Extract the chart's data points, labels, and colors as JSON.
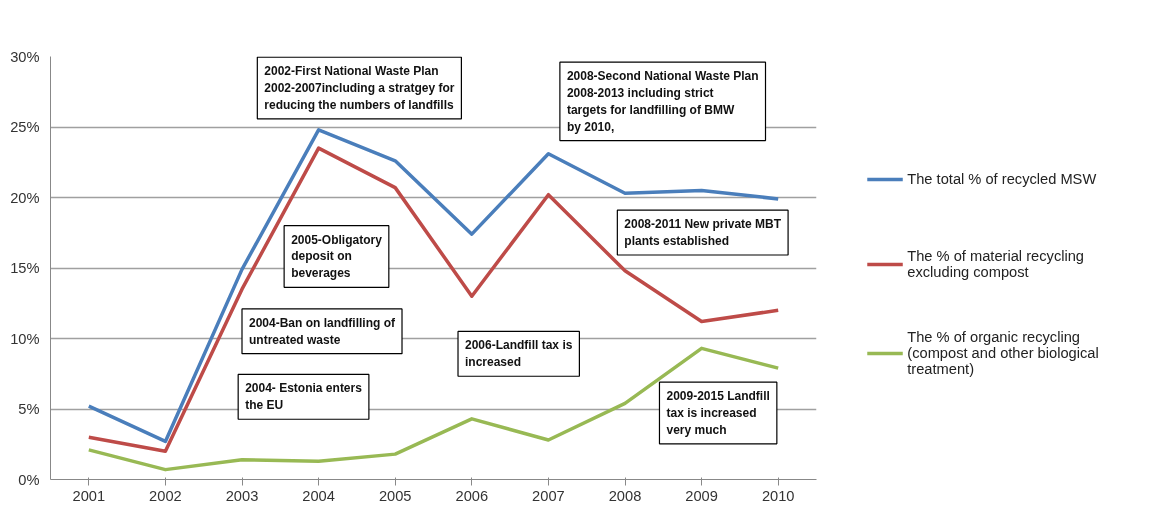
{
  "chart_data": {
    "type": "line",
    "categories": [
      "2001",
      "2002",
      "2003",
      "2004",
      "2005",
      "2006",
      "2007",
      "2008",
      "2009",
      "2010"
    ],
    "series": [
      {
        "name": "The total % of recycled MSW",
        "color": "#4a7ebb",
        "values": [
          5.2,
          2.7,
          14.9,
          24.8,
          22.6,
          17.4,
          23.1,
          20.3,
          20.5,
          19.9
        ]
      },
      {
        "name": "The % of material recycling excluding compost",
        "color": "#be4b48",
        "values": [
          3.0,
          2.0,
          13.5,
          23.5,
          20.7,
          13.0,
          20.2,
          14.8,
          11.2,
          12.0
        ]
      },
      {
        "name": "The % of organic recycling (compost and other biological treatment)",
        "color": "#98b954",
        "values": [
          2.1,
          0.7,
          1.4,
          1.3,
          1.8,
          4.3,
          2.8,
          5.4,
          9.3,
          7.9
        ]
      }
    ],
    "ylim": [
      0,
      30
    ],
    "yticks": [
      {
        "value": 0,
        "label": "0%"
      },
      {
        "value": 5,
        "label": "5%"
      },
      {
        "value": 10,
        "label": "10%"
      },
      {
        "value": 15,
        "label": "15%"
      },
      {
        "value": 20,
        "label": "20%"
      },
      {
        "value": 25,
        "label": "25%"
      },
      {
        "value": 30,
        "label": "30%"
      }
    ],
    "grid": "y",
    "legend": "right",
    "annotations": [
      "2002-First National Waste Plan 2002-2007including a stratgey for  reducing the numbers of landfills",
      "2008-Second National Waste Plan 2008-2013 including strict targets for landfilling of BMW by 2010,",
      "2005-Obligatory deposit on beverages",
      "2008-2011 New private MBT plants established",
      "2004-Ban on landfilling of untreated waste",
      "2006-Landfill tax is increased",
      "2004- Estonia enters the EU",
      "2009-2015 Landfill tax is increased very much"
    ]
  }
}
